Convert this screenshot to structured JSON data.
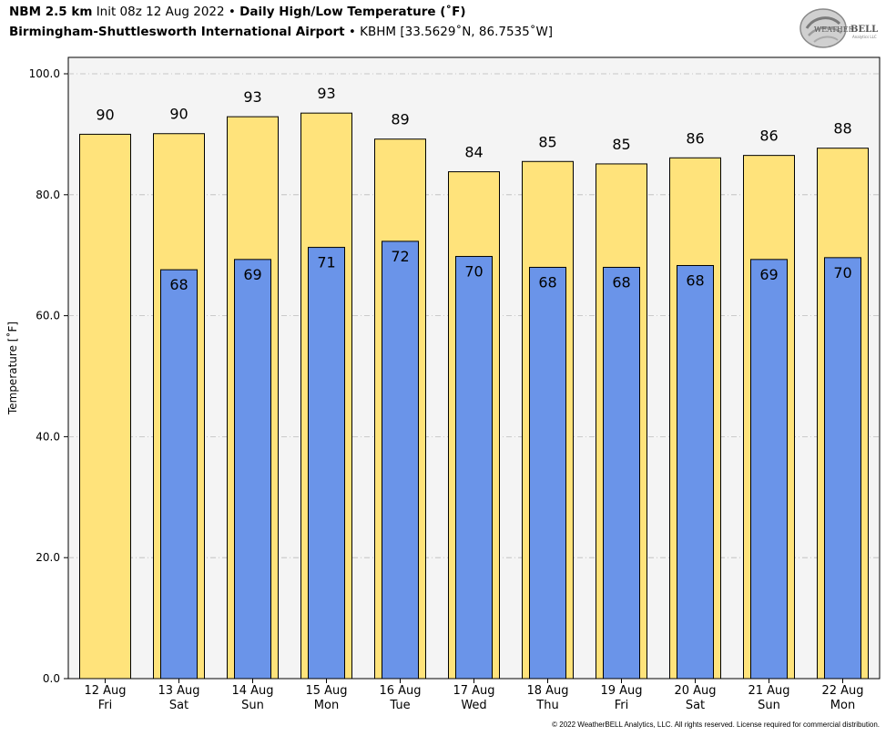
{
  "header": {
    "model": "NBM 2.5 km",
    "init": "Init 08z 12 Aug 2022",
    "bullet": "•",
    "product": "Daily High/Low Temperature (˚F)",
    "station_name": "Birmingham-Shuttlesworth International Airport",
    "station_info": "KBHM [33.5629˚N, 86.7535˚W]"
  },
  "logo": {
    "text_main": "WEATHER",
    "text_accent": "BELL",
    "text_sub": "Analytics LLC"
  },
  "footer": {
    "copyright": "© 2022 WeatherBELL Analytics, LLC. All rights reserved. License required for commercial distribution."
  },
  "colors": {
    "high": "#ffe37b",
    "low": "#6a94e9",
    "plot_bg": "#f4f4f4",
    "grid": "#bbbbbb"
  },
  "chart_data": {
    "type": "bar",
    "title": "Daily High/Low Temperature (˚F)",
    "ylabel": "Temperature [˚F]",
    "ylim": [
      0,
      100
    ],
    "yticks": [
      "0.0",
      "20.0",
      "40.0",
      "60.0",
      "80.0",
      "100.0"
    ],
    "grid": true,
    "categories": [
      {
        "date": "12 Aug",
        "day": "Fri"
      },
      {
        "date": "13 Aug",
        "day": "Sat"
      },
      {
        "date": "14 Aug",
        "day": "Sun"
      },
      {
        "date": "15 Aug",
        "day": "Mon"
      },
      {
        "date": "16 Aug",
        "day": "Tue"
      },
      {
        "date": "17 Aug",
        "day": "Wed"
      },
      {
        "date": "18 Aug",
        "day": "Thu"
      },
      {
        "date": "19 Aug",
        "day": "Fri"
      },
      {
        "date": "20 Aug",
        "day": "Sat"
      },
      {
        "date": "21 Aug",
        "day": "Sun"
      },
      {
        "date": "22 Aug",
        "day": "Mon"
      }
    ],
    "series": [
      {
        "values": [
          90.0,
          90.1,
          92.9,
          93.5,
          89.2,
          83.8,
          85.5,
          85.1,
          86.1,
          86.5,
          87.7
        ],
        "labels": [
          "90",
          "90",
          "93",
          "93",
          "89",
          "84",
          "85",
          "85",
          "86",
          "86",
          "88"
        ]
      },
      {
        "values": [
          null,
          67.6,
          69.3,
          71.3,
          72.3,
          69.8,
          68.0,
          68.0,
          68.3,
          69.3,
          69.6
        ],
        "labels": [
          null,
          "68",
          "69",
          "71",
          "72",
          "70",
          "68",
          "68",
          "68",
          "69",
          "70"
        ]
      }
    ]
  }
}
